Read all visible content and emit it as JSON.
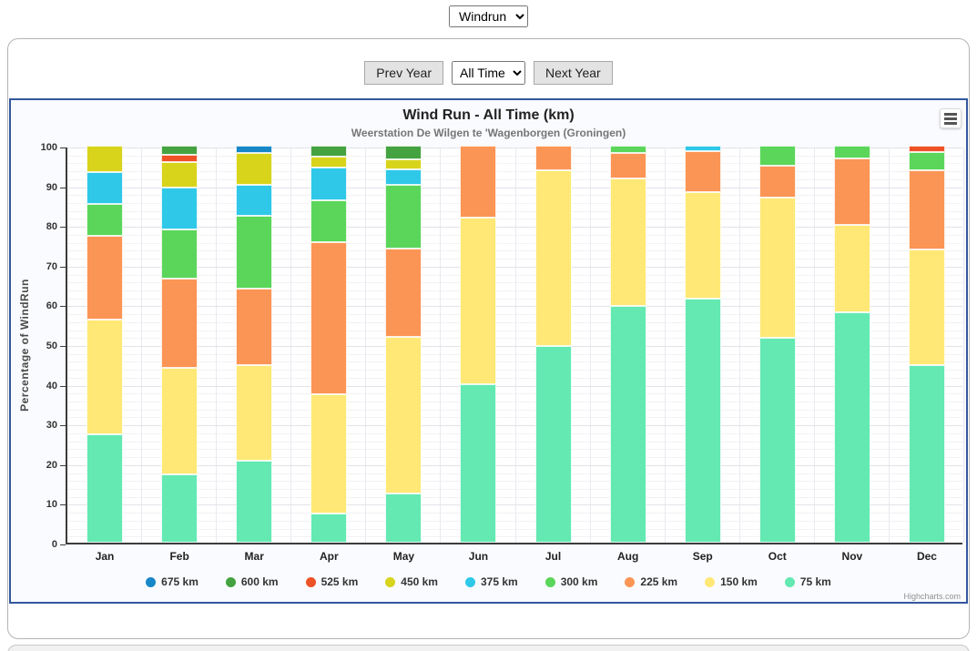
{
  "top_bar": {
    "chart_type_select": "Windrun"
  },
  "controls": {
    "prev_year_label": "Prev Year",
    "range_select": "All Time",
    "next_year_label": "Next Year"
  },
  "credits": "Highcharts.com",
  "colors": {
    "panel_border": "#33589e"
  },
  "chart_data": {
    "type": "bar",
    "stacking": "percent",
    "title": "Wind Run - All Time (km)",
    "subtitle": "Weerstation De Wilgen te 'Wagenborgen (Groningen)",
    "ylabel": "Percentage of WindRun",
    "ylim": [
      0,
      100
    ],
    "ytick_step": 10,
    "grid": true,
    "legend_position": "bottom",
    "categories": [
      "Jan",
      "Feb",
      "Mar",
      "Apr",
      "May",
      "Jun",
      "Jul",
      "Aug",
      "Sep",
      "Oct",
      "Nov",
      "Dec"
    ],
    "legend_order": [
      "675 km",
      "600 km",
      "525 km",
      "450 km",
      "375 km",
      "300 km",
      "225 km",
      "150 km",
      "75 km"
    ],
    "series": [
      {
        "name": "75 km",
        "color": "#64e9b3",
        "values": [
          27.3,
          17.3,
          20.6,
          7.4,
          12.5,
          40.0,
          49.6,
          59.7,
          61.5,
          51.5,
          58.0,
          44.8
        ]
      },
      {
        "name": "150 km",
        "color": "#ffe876",
        "values": [
          29.0,
          26.8,
          24.2,
          30.0,
          39.4,
          41.8,
          44.3,
          32.1,
          26.7,
          35.4,
          22.0,
          29.1
        ]
      },
      {
        "name": "225 km",
        "color": "#fb9555",
        "values": [
          21.0,
          22.4,
          19.3,
          38.4,
          22.2,
          18.2,
          6.1,
          6.4,
          10.4,
          8.0,
          16.9,
          19.8
        ]
      },
      {
        "name": "300 km",
        "color": "#5bd65b",
        "values": [
          8.0,
          12.4,
          18.2,
          10.5,
          16.0,
          0,
          0,
          1.8,
          0,
          5.1,
          3.1,
          4.7
        ]
      },
      {
        "name": "375 km",
        "color": "#2fc8e8",
        "values": [
          8.0,
          10.5,
          7.8,
          8.2,
          4.0,
          0,
          0,
          0,
          1.4,
          0,
          0,
          0
        ]
      },
      {
        "name": "450 km",
        "color": "#d8d41c",
        "values": [
          6.7,
          6.5,
          8.1,
          2.8,
          2.5,
          0,
          0,
          0,
          0,
          0,
          0,
          0
        ]
      },
      {
        "name": "525 km",
        "color": "#ee5226",
        "values": [
          0,
          1.7,
          0,
          0,
          0,
          0,
          0,
          0,
          0,
          0,
          0,
          1.6
        ]
      },
      {
        "name": "600 km",
        "color": "#44a340",
        "values": [
          0,
          2.4,
          0,
          2.7,
          3.4,
          0,
          0,
          0,
          0,
          0,
          0,
          0
        ]
      },
      {
        "name": "675 km",
        "color": "#1787c8",
        "values": [
          0,
          0,
          1.8,
          0,
          0,
          0,
          0,
          0,
          0,
          0,
          0,
          0
        ]
      }
    ]
  }
}
